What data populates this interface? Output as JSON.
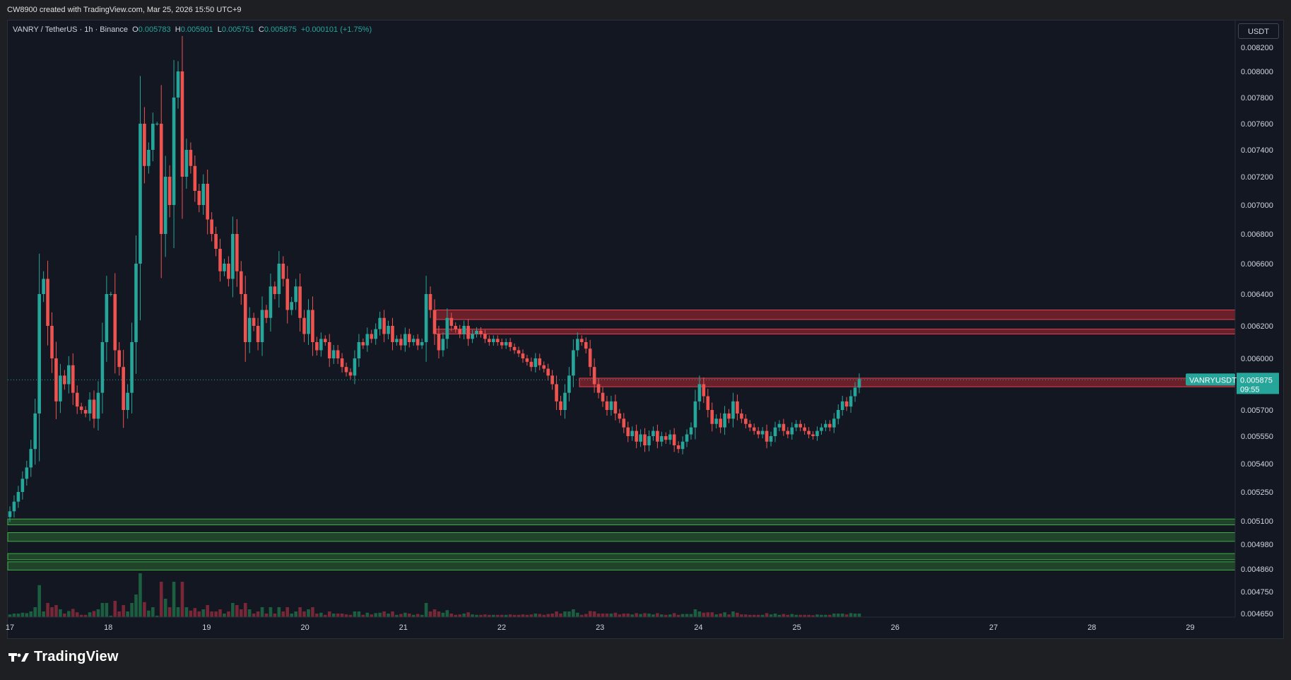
{
  "header": {
    "credit": "CW8900 created with TradingView.com, Mar 25, 2026 15:50 UTC+9"
  },
  "legend": {
    "symbol": "VANRY / TetherUS · 1h · Binance",
    "o_label": "O",
    "o": "0.005783",
    "h_label": "H",
    "h": "0.005901",
    "l_label": "L",
    "l": "0.005751",
    "c_label": "C",
    "c": "0.005875",
    "change": "+0.000101 (+1.75%)"
  },
  "currency": "USDT",
  "brand": {
    "name": "TradingView"
  },
  "colors": {
    "up": "#26a69a",
    "down": "#ef5350",
    "background": "#131722",
    "resistance": "#b22833",
    "support": "#2e7d32"
  },
  "chart_data": {
    "type": "candlestick",
    "symbol": "VANRYUSDT",
    "interval": "1h",
    "y_ticks": [
      "0.008200",
      "0.008000",
      "0.007800",
      "0.007600",
      "0.007400",
      "0.007200",
      "0.007000",
      "0.006800",
      "0.006600",
      "0.006400",
      "0.006200",
      "0.006000",
      "0.005700",
      "0.005550",
      "0.005400",
      "0.005250",
      "0.005100",
      "0.004980",
      "0.004860",
      "0.004750",
      "0.004650"
    ],
    "x_ticks": [
      "17",
      "18",
      "19",
      "20",
      "21",
      "22",
      "23",
      "24",
      "25",
      "26",
      "27",
      "28",
      "29"
    ],
    "last_price": {
      "label": "VANRYUSDT",
      "value": "0.005875",
      "countdown": "09:55"
    },
    "resistance_zones": [
      {
        "low": 0.00624,
        "high": 0.0063
      },
      {
        "low": 0.00615,
        "high": 0.00618
      },
      {
        "low": 0.005835,
        "high": 0.005885
      }
    ],
    "support_zones": [
      {
        "low": 0.00508,
        "high": 0.00511
      },
      {
        "low": 0.004995,
        "high": 0.00504
      },
      {
        "low": 0.004855,
        "high": 0.004895
      },
      {
        "low": 0.004905,
        "high": 0.004935
      }
    ],
    "close_series": [
      0.00515,
      0.0052,
      0.00525,
      0.00532,
      0.00538,
      0.00548,
      0.00568,
      0.0064,
      0.0065,
      0.0062,
      0.006,
      0.00575,
      0.0059,
      0.00585,
      0.00596,
      0.0058,
      0.00572,
      0.0057,
      0.00568,
      0.00576,
      0.00565,
      0.0058,
      0.0061,
      0.0064,
      0.0064,
      0.00605,
      0.00595,
      0.0057,
      0.0058,
      0.0061,
      0.0066,
      0.0076,
      0.00728,
      0.0074,
      0.0076,
      0.0076,
      0.0068,
      0.0072,
      0.007,
      0.0078,
      0.008,
      0.0072,
      0.0074,
      0.00728,
      0.0071,
      0.007,
      0.00715,
      0.0069,
      0.0068,
      0.0067,
      0.00655,
      0.0066,
      0.0065,
      0.0068,
      0.00655,
      0.0064,
      0.0061,
      0.00625,
      0.0062,
      0.0061,
      0.0063,
      0.00625,
      0.00645,
      0.0064,
      0.0066,
      0.0065,
      0.0063,
      0.00635,
      0.00645,
      0.00625,
      0.00615,
      0.0063,
      0.0061,
      0.00605,
      0.00612,
      0.0061,
      0.006,
      0.00605,
      0.006,
      0.00595,
      0.00592,
      0.0059,
      0.006,
      0.0061,
      0.00608,
      0.00615,
      0.00612,
      0.00618,
      0.00625,
      0.00615,
      0.0062,
      0.0061,
      0.00612,
      0.00608,
      0.00615,
      0.0061,
      0.00612,
      0.00608,
      0.0061,
      0.0064,
      0.0063,
      0.00615,
      0.00605,
      0.00612,
      0.00625,
      0.0062,
      0.00618,
      0.00615,
      0.0062,
      0.00612,
      0.00615,
      0.00617,
      0.00615,
      0.00612,
      0.0061,
      0.00612,
      0.0061,
      0.00608,
      0.0061,
      0.00607,
      0.00605,
      0.00603,
      0.006,
      0.00598,
      0.00595,
      0.006,
      0.00596,
      0.00594,
      0.0059,
      0.00585,
      0.00575,
      0.0057,
      0.0058,
      0.0059,
      0.00605,
      0.00612,
      0.0061,
      0.00606,
      0.00595,
      0.00585,
      0.0058,
      0.00575,
      0.0057,
      0.00575,
      0.00568,
      0.00565,
      0.0056,
      0.00555,
      0.00558,
      0.00552,
      0.00556,
      0.0055,
      0.00555,
      0.00558,
      0.00552,
      0.00555,
      0.00553,
      0.00556,
      0.0055,
      0.00548,
      0.00552,
      0.00556,
      0.0056,
      0.00575,
      0.00585,
      0.00578,
      0.0057,
      0.00562,
      0.00565,
      0.0056,
      0.00568,
      0.00565,
      0.00575,
      0.00568,
      0.00565,
      0.00562,
      0.0056,
      0.00558,
      0.00556,
      0.00558,
      0.00552,
      0.00555,
      0.0056,
      0.00562,
      0.00558,
      0.00556,
      0.0056,
      0.00562,
      0.0056,
      0.00558,
      0.00556,
      0.00555,
      0.00558,
      0.0056,
      0.00562,
      0.0056,
      0.00565,
      0.0057,
      0.00575,
      0.00572,
      0.00578,
      0.00583,
      0.00588
    ]
  }
}
